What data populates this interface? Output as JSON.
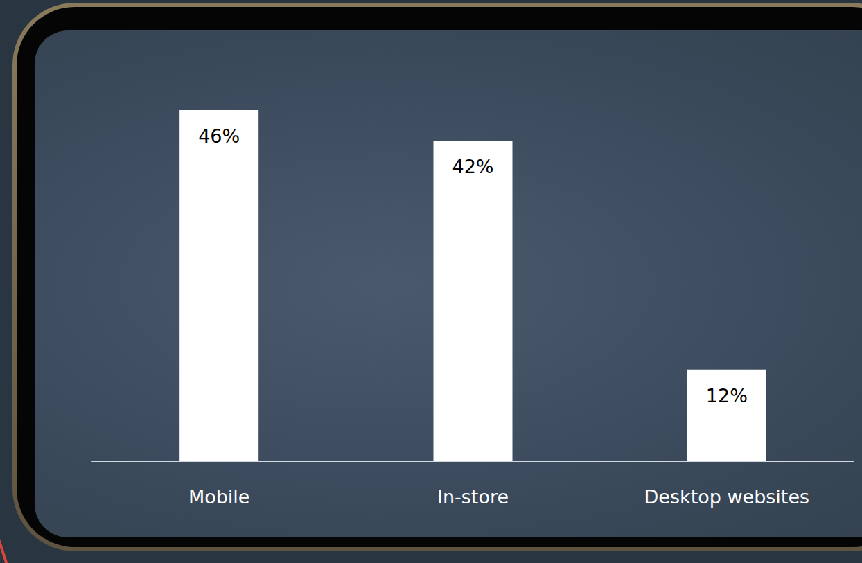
{
  "chart_data": {
    "type": "bar",
    "categories": [
      "Mobile",
      "In-store",
      "Desktop websites"
    ],
    "values": [
      46,
      42,
      12
    ],
    "value_labels": [
      "46%",
      "42%",
      "12%"
    ],
    "color": "#ffffff",
    "ylim": [
      0,
      46
    ],
    "grid": false,
    "data_labels": true,
    "tick_labels": "x"
  }
}
